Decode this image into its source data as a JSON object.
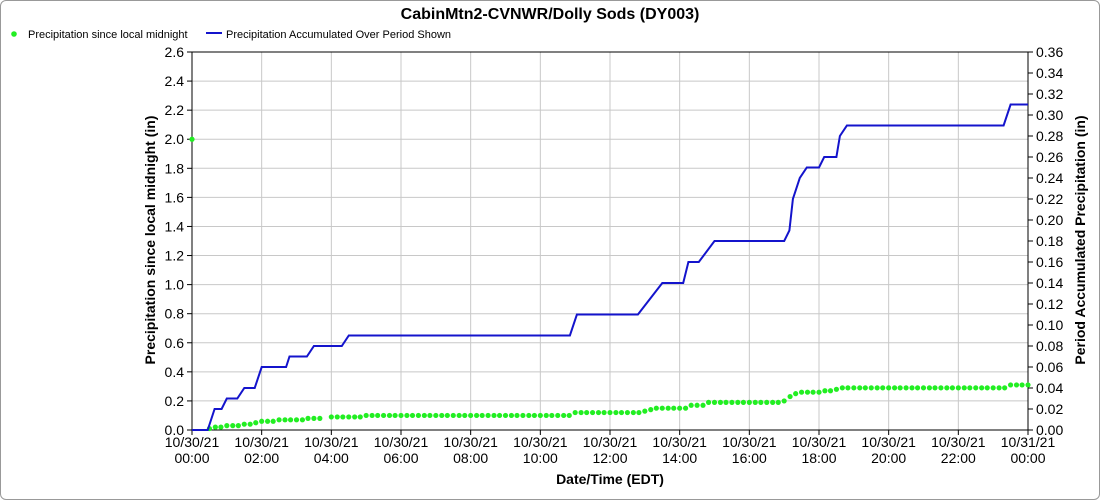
{
  "chart_data": {
    "type": "line",
    "title": "CabinMtn2-CVNWR/Dolly Sods (DY003)",
    "xlabel": "Date/Time (EDT)",
    "ylabel_left": "Precipitation since local midnight (in)",
    "ylabel_right": "Period Accumulated Precipitation (in)",
    "ylim_left": [
      0,
      2.6
    ],
    "ylim_right": [
      0,
      0.36
    ],
    "yticks_left": [
      "0.0",
      "0.2",
      "0.4",
      "0.6",
      "0.8",
      "1.0",
      "1.2",
      "1.4",
      "1.6",
      "1.8",
      "2.0",
      "2.2",
      "2.4",
      "2.6"
    ],
    "yticks_right": [
      "0.00",
      "0.02",
      "0.04",
      "0.06",
      "0.08",
      "0.10",
      "0.12",
      "0.14",
      "0.16",
      "0.18",
      "0.20",
      "0.22",
      "0.24",
      "0.26",
      "0.28",
      "0.30",
      "0.32",
      "0.34",
      "0.36"
    ],
    "xticks": [
      {
        "date": "10/30/21",
        "time": "00:00"
      },
      {
        "date": "10/30/21",
        "time": "02:00"
      },
      {
        "date": "10/30/21",
        "time": "04:00"
      },
      {
        "date": "10/30/21",
        "time": "06:00"
      },
      {
        "date": "10/30/21",
        "time": "08:00"
      },
      {
        "date": "10/30/21",
        "time": "10:00"
      },
      {
        "date": "10/30/21",
        "time": "12:00"
      },
      {
        "date": "10/30/21",
        "time": "14:00"
      },
      {
        "date": "10/30/21",
        "time": "16:00"
      },
      {
        "date": "10/30/21",
        "time": "18:00"
      },
      {
        "date": "10/30/21",
        "time": "20:00"
      },
      {
        "date": "10/30/21",
        "time": "22:00"
      },
      {
        "date": "10/31/21",
        "time": "00:00"
      }
    ],
    "x_range_hours": [
      0,
      24
    ],
    "grid": true,
    "legend_placement": "top-left",
    "series": [
      {
        "name": "Precipitation since local midnight",
        "axis": "left",
        "style": "points",
        "color": "#22ee22",
        "points": [
          [
            0,
            2.0
          ],
          [
            0.5,
            0.01
          ],
          [
            0.67,
            0.02
          ],
          [
            0.83,
            0.02
          ],
          [
            1.0,
            0.03
          ],
          [
            1.17,
            0.03
          ],
          [
            1.33,
            0.03
          ],
          [
            1.5,
            0.04
          ],
          [
            1.67,
            0.04
          ],
          [
            1.83,
            0.05
          ],
          [
            2.0,
            0.06
          ],
          [
            2.17,
            0.06
          ],
          [
            2.33,
            0.06
          ],
          [
            2.5,
            0.07
          ],
          [
            2.67,
            0.07
          ],
          [
            2.83,
            0.07
          ],
          [
            3.0,
            0.07
          ],
          [
            3.17,
            0.07
          ],
          [
            3.33,
            0.08
          ],
          [
            3.5,
            0.08
          ],
          [
            3.67,
            0.08
          ],
          [
            4.0,
            0.09
          ],
          [
            4.17,
            0.09
          ],
          [
            4.33,
            0.09
          ],
          [
            4.5,
            0.09
          ],
          [
            4.67,
            0.09
          ],
          [
            4.83,
            0.09
          ],
          [
            5.0,
            0.1
          ],
          [
            5.17,
            0.1
          ],
          [
            5.33,
            0.1
          ],
          [
            5.5,
            0.1
          ],
          [
            5.67,
            0.1
          ],
          [
            5.83,
            0.1
          ],
          [
            6.0,
            0.1
          ],
          [
            6.17,
            0.1
          ],
          [
            6.33,
            0.1
          ],
          [
            6.5,
            0.1
          ],
          [
            6.67,
            0.1
          ],
          [
            6.83,
            0.1
          ],
          [
            7.0,
            0.1
          ],
          [
            7.17,
            0.1
          ],
          [
            7.33,
            0.1
          ],
          [
            7.5,
            0.1
          ],
          [
            7.67,
            0.1
          ],
          [
            7.83,
            0.1
          ],
          [
            8.0,
            0.1
          ],
          [
            8.17,
            0.1
          ],
          [
            8.33,
            0.1
          ],
          [
            8.5,
            0.1
          ],
          [
            8.67,
            0.1
          ],
          [
            8.83,
            0.1
          ],
          [
            9.0,
            0.1
          ],
          [
            9.17,
            0.1
          ],
          [
            9.33,
            0.1
          ],
          [
            9.5,
            0.1
          ],
          [
            9.67,
            0.1
          ],
          [
            9.83,
            0.1
          ],
          [
            10.0,
            0.1
          ],
          [
            10.17,
            0.1
          ],
          [
            10.33,
            0.1
          ],
          [
            10.5,
            0.1
          ],
          [
            10.67,
            0.1
          ],
          [
            10.83,
            0.1
          ],
          [
            11.0,
            0.12
          ],
          [
            11.17,
            0.12
          ],
          [
            11.33,
            0.12
          ],
          [
            11.5,
            0.12
          ],
          [
            11.67,
            0.12
          ],
          [
            11.83,
            0.12
          ],
          [
            12.0,
            0.12
          ],
          [
            12.17,
            0.12
          ],
          [
            12.33,
            0.12
          ],
          [
            12.5,
            0.12
          ],
          [
            12.67,
            0.12
          ],
          [
            12.83,
            0.12
          ],
          [
            13.0,
            0.13
          ],
          [
            13.17,
            0.14
          ],
          [
            13.33,
            0.15
          ],
          [
            13.5,
            0.15
          ],
          [
            13.67,
            0.15
          ],
          [
            13.83,
            0.15
          ],
          [
            14.0,
            0.15
          ],
          [
            14.17,
            0.15
          ],
          [
            14.33,
            0.17
          ],
          [
            14.5,
            0.17
          ],
          [
            14.67,
            0.17
          ],
          [
            14.83,
            0.19
          ],
          [
            15.0,
            0.19
          ],
          [
            15.17,
            0.19
          ],
          [
            15.33,
            0.19
          ],
          [
            15.5,
            0.19
          ],
          [
            15.67,
            0.19
          ],
          [
            15.83,
            0.19
          ],
          [
            16.0,
            0.19
          ],
          [
            16.17,
            0.19
          ],
          [
            16.33,
            0.19
          ],
          [
            16.5,
            0.19
          ],
          [
            16.67,
            0.19
          ],
          [
            16.83,
            0.19
          ],
          [
            17.0,
            0.2
          ],
          [
            17.17,
            0.23
          ],
          [
            17.33,
            0.25
          ],
          [
            17.5,
            0.26
          ],
          [
            17.67,
            0.26
          ],
          [
            17.83,
            0.26
          ],
          [
            18.0,
            0.26
          ],
          [
            18.17,
            0.27
          ],
          [
            18.33,
            0.27
          ],
          [
            18.5,
            0.28
          ],
          [
            18.67,
            0.29
          ],
          [
            18.83,
            0.29
          ],
          [
            19.0,
            0.29
          ],
          [
            19.17,
            0.29
          ],
          [
            19.33,
            0.29
          ],
          [
            19.5,
            0.29
          ],
          [
            19.67,
            0.29
          ],
          [
            19.83,
            0.29
          ],
          [
            20.0,
            0.29
          ],
          [
            20.17,
            0.29
          ],
          [
            20.33,
            0.29
          ],
          [
            20.5,
            0.29
          ],
          [
            20.67,
            0.29
          ],
          [
            20.83,
            0.29
          ],
          [
            21.0,
            0.29
          ],
          [
            21.17,
            0.29
          ],
          [
            21.33,
            0.29
          ],
          [
            21.5,
            0.29
          ],
          [
            21.67,
            0.29
          ],
          [
            21.83,
            0.29
          ],
          [
            22.0,
            0.29
          ],
          [
            22.17,
            0.29
          ],
          [
            22.33,
            0.29
          ],
          [
            22.5,
            0.29
          ],
          [
            22.67,
            0.29
          ],
          [
            22.83,
            0.29
          ],
          [
            23.0,
            0.29
          ],
          [
            23.17,
            0.29
          ],
          [
            23.33,
            0.29
          ],
          [
            23.5,
            0.31
          ],
          [
            23.67,
            0.31
          ],
          [
            23.83,
            0.31
          ],
          [
            24.0,
            0.31
          ]
        ]
      },
      {
        "name": "Precipitation Accumulated Over Period Shown",
        "axis": "right",
        "style": "line",
        "color": "#1414cc",
        "points": [
          [
            0,
            0
          ],
          [
            0.45,
            0
          ],
          [
            0.65,
            0.02
          ],
          [
            0.85,
            0.02
          ],
          [
            1.0,
            0.03
          ],
          [
            1.3,
            0.03
          ],
          [
            1.5,
            0.04
          ],
          [
            1.8,
            0.04
          ],
          [
            2.0,
            0.06
          ],
          [
            2.7,
            0.06
          ],
          [
            2.8,
            0.07
          ],
          [
            3.3,
            0.07
          ],
          [
            3.5,
            0.08
          ],
          [
            4.3,
            0.08
          ],
          [
            4.5,
            0.09
          ],
          [
            10.85,
            0.09
          ],
          [
            11.05,
            0.11
          ],
          [
            12.8,
            0.11
          ],
          [
            13.5,
            0.14
          ],
          [
            14.1,
            0.14
          ],
          [
            14.25,
            0.16
          ],
          [
            14.55,
            0.16
          ],
          [
            15.0,
            0.18
          ],
          [
            17.0,
            0.18
          ],
          [
            17.15,
            0.19
          ],
          [
            17.25,
            0.22
          ],
          [
            17.45,
            0.24
          ],
          [
            17.65,
            0.25
          ],
          [
            18.0,
            0.25
          ],
          [
            18.15,
            0.26
          ],
          [
            18.5,
            0.26
          ],
          [
            18.6,
            0.28
          ],
          [
            18.8,
            0.29
          ],
          [
            23.3,
            0.29
          ],
          [
            23.5,
            0.31
          ],
          [
            24.0,
            0.31
          ]
        ]
      }
    ]
  }
}
